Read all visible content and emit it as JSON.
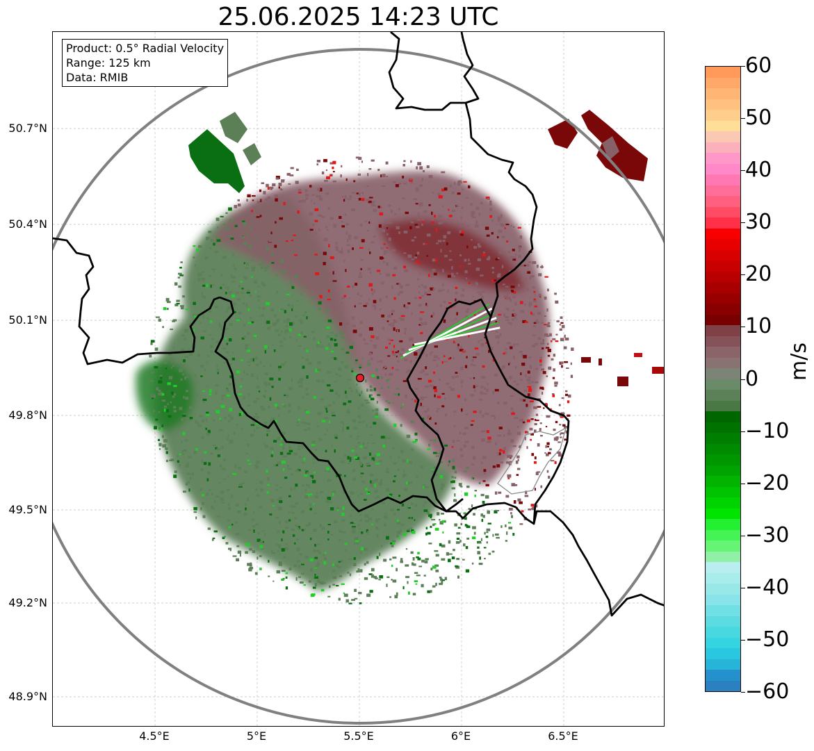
{
  "title": "25.06.2025 14:23 UTC",
  "info": {
    "product": "Product: 0.5° Radial Velocity",
    "range": "Range: 125 km",
    "source": "Data: RMIB"
  },
  "axes": {
    "lat_labels": [
      "50.7°N",
      "50.4°N",
      "50.1°N",
      "49.8°N",
      "49.5°N",
      "49.2°N",
      "48.9°N"
    ],
    "lon_labels": [
      "4.5°E",
      "5°E",
      "5.5°E",
      "6°E",
      "6.5°E"
    ]
  },
  "colorbar": {
    "unit": "m/s",
    "tick_labels": [
      "60",
      "50",
      "40",
      "30",
      "20",
      "10",
      "0",
      "−10",
      "−20",
      "−30",
      "−40",
      "−50",
      "−60"
    ],
    "range": [
      -60,
      60
    ],
    "colors_top_to_bottom": [
      "#ff9a5a",
      "#ffa86a",
      "#ffb574",
      "#ffc080",
      "#ffcd8c",
      "#ffdf98",
      "#fbc8b4",
      "#fbb0bc",
      "#ff98c8",
      "#ff88c8",
      "#ff78b4",
      "#ff6e98",
      "#ff6080",
      "#ff4c64",
      "#ff3048",
      "#f80000",
      "#e80000",
      "#d80000",
      "#c80000",
      "#b80000",
      "#a80000",
      "#980000",
      "#880000",
      "#780000",
      "#7f4046",
      "#86525a",
      "#8a6468",
      "#8a7272",
      "#7c8478",
      "#6a8a68",
      "#5c8058",
      "#4a7844",
      "#006600",
      "#007200",
      "#007e00",
      "#008a00",
      "#009600",
      "#00a400",
      "#00b400",
      "#00c400",
      "#00d400",
      "#00e400",
      "#22f030",
      "#44f454",
      "#66f474",
      "#90f0a8",
      "#b8eef0",
      "#a8ecec",
      "#98e8e8",
      "#88e4e8",
      "#70e0e4",
      "#5cdce0",
      "#48d8e0",
      "#34d4e0",
      "#2ac8e0",
      "#26b4d8",
      "#2490cc",
      "#2a80c0"
    ]
  },
  "map": {
    "radar_site_color": "#e8202a",
    "range_ring_color": "#808080",
    "echo_colors": {
      "inbound_light": "#5d7f58",
      "inbound_dark": "#0a6e12",
      "inbound_bright": "#22cc2a",
      "outbound_light": "#876068",
      "outbound_dark": "#7a0808",
      "outbound_bright": "#e01818"
    }
  }
}
